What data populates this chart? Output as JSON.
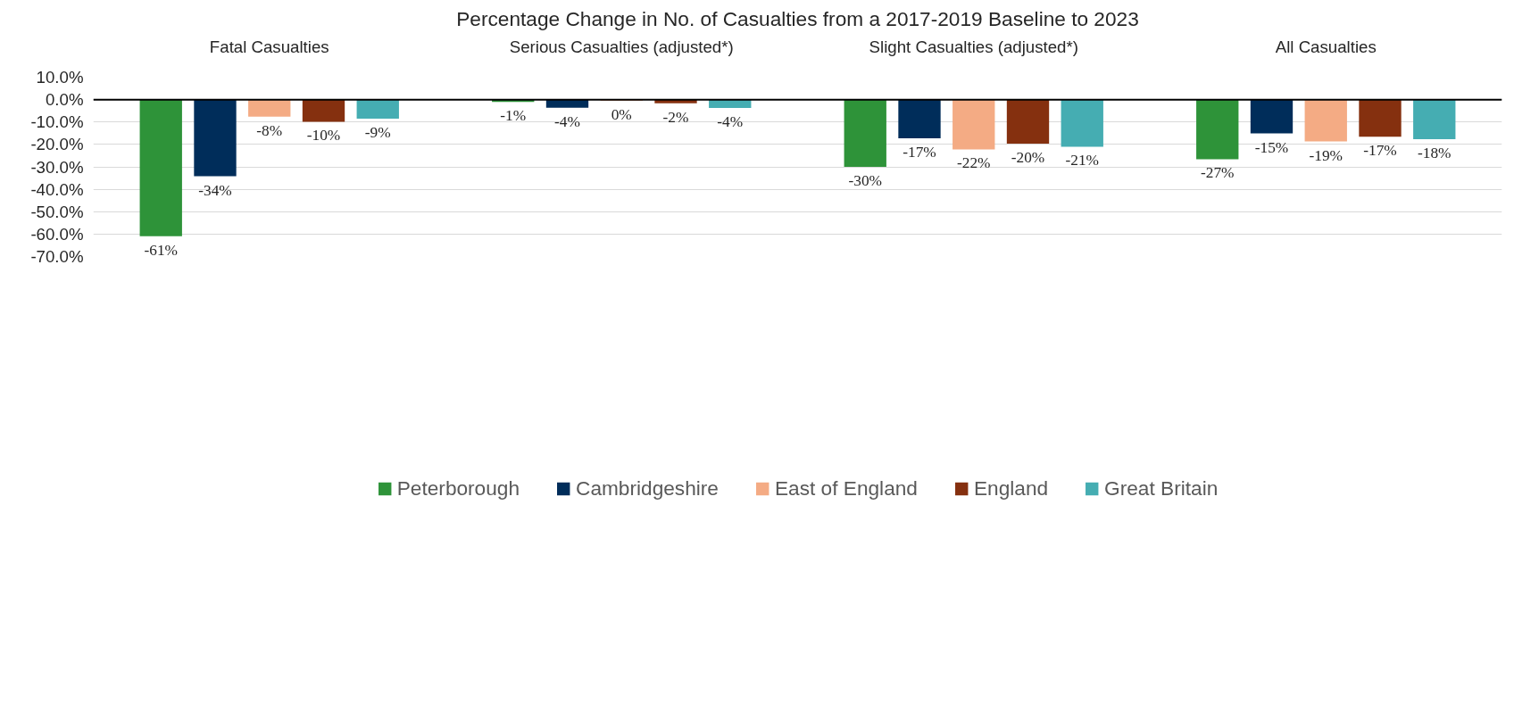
{
  "chart_data": {
    "type": "bar",
    "title": "Percentage Change in No. of Casualties from a 2017-2019 Baseline to 2023",
    "categories": [
      "Fatal Casualties",
      "Serious Casualties (adjusted*)",
      "Slight Casualties (adjusted*)",
      "All Casualties"
    ],
    "series": [
      {
        "name": "Peterborough",
        "color": "#2e9339",
        "values": [
          -60.9,
          -1.0,
          -30.0,
          -26.6
        ],
        "value_labels": [
          "-61%",
          "-1%",
          "-30%",
          "-27%"
        ]
      },
      {
        "name": "Cambridgeshire",
        "color": "#002d5a",
        "values": [
          -34.2,
          -3.6,
          -17.3,
          -15.1
        ],
        "value_labels": [
          "-34%",
          "-4%",
          "-17%",
          "-15%"
        ]
      },
      {
        "name": "East of England",
        "color": "#f4ab84",
        "values": [
          -7.6,
          -0.5,
          -22.2,
          -18.7
        ],
        "value_labels": [
          "-8%",
          "0%",
          "-22%",
          "-19%"
        ]
      },
      {
        "name": "England",
        "color": "#85300f",
        "values": [
          -9.9,
          -1.6,
          -19.7,
          -16.6
        ],
        "value_labels": [
          "-10%",
          "-2%",
          "-20%",
          "-17%"
        ]
      },
      {
        "name": "Great Britain",
        "color": "#45adb2",
        "values": [
          -8.5,
          -3.7,
          -21.0,
          -17.7
        ],
        "value_labels": [
          "-9%",
          "-4%",
          "-21%",
          "-18%"
        ]
      }
    ],
    "ylim": [
      -70,
      10
    ],
    "yticks": [
      {
        "value": -70,
        "label": "-70.0%"
      },
      {
        "value": -60,
        "label": "-60.0%"
      },
      {
        "value": -50,
        "label": "-50.0%"
      },
      {
        "value": -40,
        "label": "-40.0%"
      },
      {
        "value": -30,
        "label": "-30.0%"
      },
      {
        "value": -20,
        "label": "-20.0%"
      },
      {
        "value": -10,
        "label": "-10.0%"
      },
      {
        "value": 0,
        "label": "0.0%"
      },
      {
        "value": 10,
        "label": "10.0%"
      }
    ],
    "ref_lines": [
      {
        "axis": "y",
        "value": 0,
        "color": "#000000"
      }
    ],
    "grid": "y",
    "legend": "bottom"
  }
}
